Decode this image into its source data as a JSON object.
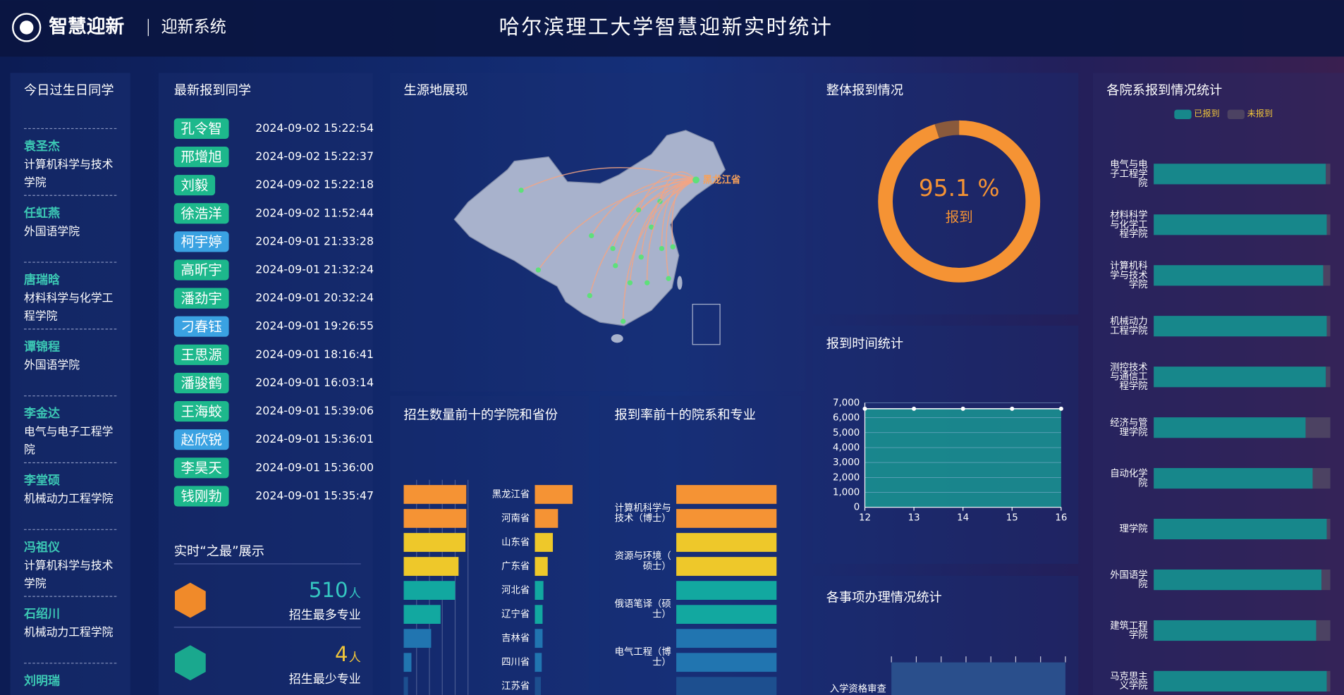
{
  "header": {
    "logo_text": "智慧迎新",
    "system": "迎新系统",
    "title": "哈尔滨理工大学智慧迎新实时统计"
  },
  "birthdays": {
    "title": "今日过生日同学",
    "items": [
      {
        "name": "袁圣杰",
        "dept": "计算机科学与技术学院"
      },
      {
        "name": "任虹燕",
        "dept": "外国语学院"
      },
      {
        "name": "唐瑞晗",
        "dept": "材料科学与化学工程学院"
      },
      {
        "name": "谭锦程",
        "dept": "外国语学院"
      },
      {
        "name": "李金达",
        "dept": "电气与电子工程学院"
      },
      {
        "name": "李堂硕",
        "dept": "机械动力工程学院"
      },
      {
        "name": "冯祖仪",
        "dept": "计算机科学与技术学院"
      },
      {
        "name": "石绍川",
        "dept": "机械动力工程学院"
      },
      {
        "name": "刘明瑞"
      }
    ]
  },
  "checkins": {
    "title": "最新报到同学",
    "items": [
      {
        "name": "孔令智",
        "time": "2024-09-02 15:22:54",
        "color": "#1db88c"
      },
      {
        "name": "邢增旭",
        "time": "2024-09-02 15:22:37",
        "color": "#1db88c"
      },
      {
        "name": "刘毅",
        "time": "2024-09-02 15:22:18",
        "color": "#1db88c"
      },
      {
        "name": "徐浩洋",
        "time": "2024-09-02 11:52:44",
        "color": "#1db88c"
      },
      {
        "name": "柯宇婷",
        "time": "2024-09-01 21:33:28",
        "color": "#3aa2e2"
      },
      {
        "name": "高昕宇",
        "time": "2024-09-01 21:32:24",
        "color": "#1db88c"
      },
      {
        "name": "潘劲宇",
        "time": "2024-09-01 20:32:24",
        "color": "#1db88c"
      },
      {
        "name": "刁春钰",
        "time": "2024-09-01 19:26:55",
        "color": "#3aa2e2"
      },
      {
        "name": "王思源",
        "time": "2024-09-01 18:16:41",
        "color": "#1db88c"
      },
      {
        "name": "潘骏鹤",
        "time": "2024-09-01 16:03:14",
        "color": "#1db88c"
      },
      {
        "name": "王海蛟",
        "time": "2024-09-01 15:39:06",
        "color": "#1db88c"
      },
      {
        "name": "赵欣锐",
        "time": "2024-09-01 15:36:01",
        "color": "#3aa2e2"
      },
      {
        "name": "李昊天",
        "time": "2024-09-01 15:36:00",
        "color": "#1db88c"
      },
      {
        "name": "钱刚勃",
        "time": "2024-09-01 15:35:47",
        "color": "#1db88c"
      }
    ]
  },
  "extremes": {
    "title": "实时“之最”展示",
    "items": [
      {
        "value": 510,
        "unit": "人",
        "label": "招生最多专业",
        "color": "#35c8c2",
        "icon_color": "#f08a2a"
      },
      {
        "value": 4,
        "unit": "人",
        "label": "招生最少专业",
        "color": "#f0c53a",
        "icon_color": "#1aa88e"
      }
    ]
  },
  "map": {
    "title": "生源地展现",
    "target": "黑龙江省"
  },
  "chart_data": [
    {
      "type": "donut",
      "title": "整体报到情况",
      "values": [
        95.1
      ],
      "value_labels": [
        "95.1 %"
      ],
      "label": "报到",
      "colors": [
        "#f59334",
        "#8a5a3c"
      ]
    },
    {
      "type": "line",
      "title": "报到时间统计",
      "x": [
        12,
        13,
        14,
        15,
        16
      ],
      "values": [
        6600,
        6600,
        6600,
        6600,
        6600
      ],
      "xlim": [
        12,
        16
      ],
      "xticks": [
        12,
        13,
        14,
        15,
        16
      ],
      "ylim": [
        0,
        7000
      ],
      "yticks": [
        0,
        {
          "value": 1000,
          "label": "1,000"
        },
        {
          "value": 2000,
          "label": "2,000"
        },
        {
          "value": 3000,
          "label": "3,000"
        },
        {
          "value": 4000,
          "label": "4,000"
        },
        {
          "value": 5000,
          "label": "5,000"
        },
        {
          "value": 6000,
          "label": "6,000"
        },
        {
          "value": 7000,
          "label": "7,000"
        }
      ],
      "color": "#1a9090",
      "grid": true
    },
    {
      "type": "bar",
      "title": "招生数量前十的学院和省份",
      "categories": [
        "黑龙江省",
        "河南省",
        "山东省",
        "广东省",
        "河北省",
        "辽宁省",
        "吉林省",
        "四川省",
        "江苏省"
      ],
      "series": [
        {
          "values": [
            73,
            73,
            72,
            64,
            60,
            43,
            32,
            9,
            5
          ]
        },
        {
          "values": [
            44,
            27,
            21,
            15,
            10,
            9,
            9,
            8,
            7
          ]
        }
      ],
      "colors": [
        "#f59334",
        "#f59334",
        "#eec82a",
        "#eec82a",
        "#12a8a0",
        "#12a8a0",
        "#2175b0",
        "#2175b0",
        "#1d4f8f"
      ],
      "xlim": [
        0,
        80
      ]
    },
    {
      "type": "bar",
      "title": "报到率前十的院系和专业",
      "categories": [
        null,
        "计算机科学与技术（博士）",
        null,
        "资源与环境（硕士）",
        null,
        "俄语笔译（硕士）",
        null,
        "电气工程（博士）",
        null
      ],
      "values": [
        100,
        100,
        100,
        100,
        100,
        100,
        100,
        100,
        100
      ],
      "colors": [
        "#f59334",
        "#f59334",
        "#eec82a",
        "#eec82a",
        "#12a8a0",
        "#12a8a0",
        "#2175b0",
        "#2175b0",
        "#1d4f8f"
      ],
      "xlim": [
        0,
        100
      ]
    },
    {
      "type": "bar",
      "title": "各事项办理情况统计",
      "categories": [
        "入学资格审查"
      ],
      "values": [
        100
      ],
      "xlim": [
        0,
        100
      ],
      "color": "#2a4f8c"
    },
    {
      "type": "stacked_bar",
      "title": "各院系报到情况统计",
      "categories": [
        "电气与电子工程学院",
        "材料科学与化学工程学院",
        "计算机科学与技术学院",
        "机械动力工程学院",
        "测控技术与通信工程学院",
        "经济与管理学院",
        "自动化学院",
        "理学院",
        "外国语学院",
        "建筑工程学院",
        "马克思主义学院"
      ],
      "series": [
        {
          "name": "已报到",
          "color": "#17878b",
          "values": [
            97.5,
            98,
            96,
            98,
            97.5,
            86,
            90,
            98,
            95,
            92,
            98
          ]
        },
        {
          "name": "未报到",
          "color": "#4c4262",
          "values": [
            2.5,
            2,
            4,
            2,
            2.5,
            14,
            10,
            2,
            5,
            8,
            2
          ]
        }
      ],
      "xlim": [
        0,
        100
      ],
      "legend": "top"
    }
  ]
}
